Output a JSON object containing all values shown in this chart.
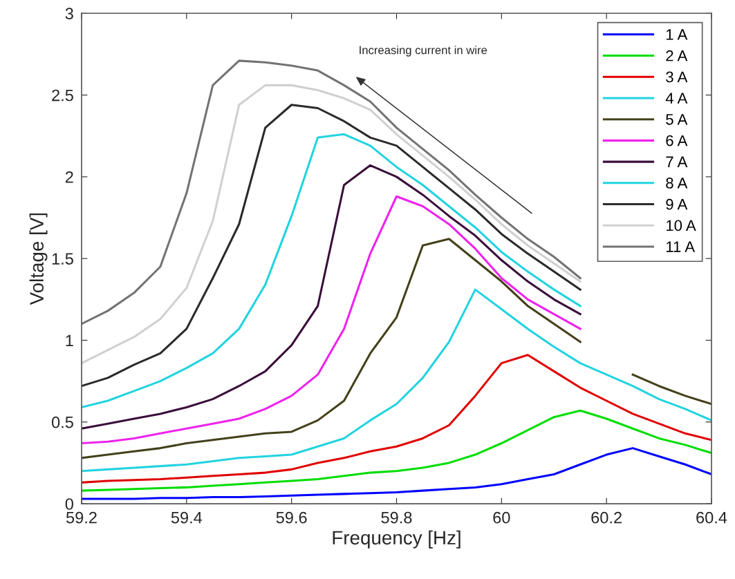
{
  "chart_data": {
    "type": "line",
    "xlabel": "Frequency [Hz]",
    "ylabel": "Voltage [V]",
    "x": [
      59.2,
      59.25,
      59.3,
      59.35,
      59.4,
      59.45,
      59.5,
      59.55,
      59.6,
      59.65,
      59.7,
      59.75,
      59.8,
      59.85,
      59.9,
      59.95,
      60.0,
      60.05,
      60.1,
      60.15,
      60.2,
      60.25,
      60.3,
      60.35,
      60.4
    ],
    "series": [
      {
        "name": "1 A",
        "color": "#0000ff",
        "values": [
          0.03,
          0.03,
          0.03,
          0.035,
          0.035,
          0.04,
          0.04,
          0.045,
          0.05,
          0.055,
          0.06,
          0.065,
          0.07,
          0.08,
          0.09,
          0.1,
          0.12,
          0.15,
          0.18,
          0.24,
          0.3,
          0.34,
          0.29,
          0.24,
          0.18
        ]
      },
      {
        "name": "2 A",
        "color": "#00dd00",
        "values": [
          0.08,
          0.085,
          0.09,
          0.095,
          0.1,
          0.11,
          0.12,
          0.13,
          0.14,
          0.15,
          0.17,
          0.19,
          0.2,
          0.22,
          0.25,
          0.3,
          0.37,
          0.45,
          0.53,
          0.57,
          0.52,
          0.46,
          0.4,
          0.36,
          0.31
        ]
      },
      {
        "name": "3 A",
        "color": "#e00000",
        "values": [
          0.13,
          0.14,
          0.145,
          0.15,
          0.16,
          0.17,
          0.18,
          0.19,
          0.21,
          0.25,
          0.28,
          0.32,
          0.35,
          0.4,
          0.48,
          0.66,
          0.86,
          0.91,
          0.81,
          0.71,
          0.63,
          0.55,
          0.49,
          0.43,
          0.39
        ]
      },
      {
        "name": "4 A",
        "color": "#22d3e0",
        "values": [
          0.2,
          0.21,
          0.22,
          0.23,
          0.24,
          0.26,
          0.28,
          0.29,
          0.3,
          0.35,
          0.4,
          0.51,
          0.61,
          0.77,
          0.99,
          1.31,
          1.19,
          1.07,
          0.96,
          0.86,
          0.79,
          0.72,
          0.64,
          0.58,
          0.51
        ]
      },
      {
        "name": "5 A",
        "color": "#44401a",
        "values": [
          0.28,
          0.3,
          0.32,
          0.34,
          0.37,
          0.39,
          0.41,
          0.43,
          0.44,
          0.51,
          0.63,
          0.92,
          1.14,
          1.58,
          1.62,
          1.49,
          1.36,
          1.21,
          1.1,
          0.99,
          null,
          0.79,
          0.72,
          0.66,
          0.61
        ]
      },
      {
        "name": "6 A",
        "color": "#ee22ee",
        "values": [
          0.37,
          0.38,
          0.4,
          0.43,
          0.46,
          0.49,
          0.52,
          0.58,
          0.66,
          0.79,
          1.07,
          1.53,
          1.88,
          1.82,
          1.71,
          1.56,
          1.38,
          1.25,
          1.16,
          1.07,
          null,
          null,
          null,
          null,
          null
        ]
      },
      {
        "name": "7 A",
        "color": "#3a0e3a",
        "values": [
          0.46,
          0.49,
          0.52,
          0.55,
          0.59,
          0.64,
          0.72,
          0.81,
          0.97,
          1.21,
          1.95,
          2.07,
          2.0,
          1.89,
          1.76,
          1.64,
          1.49,
          1.36,
          1.25,
          1.16,
          null,
          null,
          null,
          null,
          null
        ]
      },
      {
        "name": "8 A",
        "color": "#22d3e0",
        "values": [
          0.59,
          0.63,
          0.69,
          0.75,
          0.83,
          0.92,
          1.07,
          1.34,
          1.76,
          2.24,
          2.26,
          2.19,
          2.06,
          1.95,
          1.82,
          1.69,
          1.54,
          1.42,
          1.31,
          1.21,
          null,
          null,
          null,
          null,
          null
        ]
      },
      {
        "name": "9 A",
        "color": "#2a2a2a",
        "values": [
          0.72,
          0.77,
          0.85,
          0.92,
          1.07,
          1.38,
          1.71,
          2.3,
          2.44,
          2.42,
          2.34,
          2.24,
          2.19,
          2.06,
          1.93,
          1.8,
          1.65,
          1.53,
          1.42,
          1.31,
          null,
          null,
          null,
          null,
          null
        ]
      },
      {
        "name": "10 A",
        "color": "#d0d0d0",
        "values": [
          0.86,
          0.94,
          1.02,
          1.13,
          1.32,
          1.73,
          2.44,
          2.56,
          2.56,
          2.53,
          2.48,
          2.41,
          2.26,
          2.13,
          2.0,
          1.86,
          1.71,
          1.58,
          1.47,
          1.36,
          null,
          null,
          null,
          null,
          null
        ]
      },
      {
        "name": "11 A",
        "color": "#737373",
        "values": [
          1.1,
          1.18,
          1.29,
          1.45,
          1.9,
          2.56,
          2.71,
          2.7,
          2.68,
          2.65,
          2.56,
          2.46,
          2.3,
          2.17,
          2.04,
          1.89,
          1.75,
          1.62,
          1.51,
          1.38,
          null,
          null,
          null,
          null,
          null
        ]
      }
    ],
    "annotations": [
      "Increasing current in wire"
    ],
    "xlim": [
      59.2,
      60.4
    ],
    "xticks": [
      59.2,
      59.4,
      59.6,
      59.8,
      60,
      60.2,
      60.4
    ],
    "ylim": [
      0,
      3
    ],
    "yticks": [
      0,
      0.5,
      1,
      1.5,
      2,
      2.5,
      3
    ],
    "grid": false,
    "legend": "top right",
    "marker": "none",
    "line_style": "solid"
  }
}
